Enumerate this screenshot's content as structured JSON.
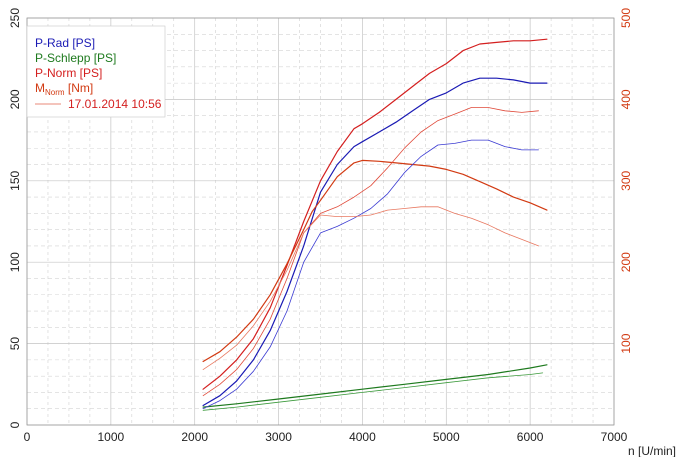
{
  "chart_data": {
    "type": "line",
    "title": "",
    "xlabel": "n [U/min]",
    "xlim": [
      0,
      7000
    ],
    "ylim_left": [
      0,
      250
    ],
    "ylim_right": [
      0,
      500
    ],
    "x_ticks": [
      0,
      1000,
      2000,
      3000,
      4000,
      5000,
      6000,
      7000
    ],
    "y_ticks_left": [
      0,
      50,
      100,
      150,
      200,
      250
    ],
    "y_ticks_right": [
      100,
      200,
      300,
      400,
      500
    ],
    "grid": true,
    "legend": {
      "position": "top-left",
      "entries": [
        {
          "label": "P-Rad [PS]",
          "color": "#1a1ab4"
        },
        {
          "label": "P-Schlepp [PS]",
          "color": "#1e7a1e"
        },
        {
          "label": "P-Norm [PS]",
          "color": "#d41f1f"
        },
        {
          "label_main": "M",
          "label_sub": "Norm",
          "label_unit": " [Nm]",
          "color": "#d23a12"
        }
      ],
      "comparison": {
        "label": "17.01.2014 10:56",
        "color": "#e88a7a"
      }
    },
    "series": [
      {
        "name": "P-Rad [PS]",
        "run": "main",
        "axis": "left",
        "color": "#1a1ab4",
        "width": 1.2,
        "x": [
          2100,
          2300,
          2500,
          2700,
          2900,
          3100,
          3300,
          3500,
          3700,
          3900,
          4000,
          4200,
          4400,
          4600,
          4800,
          5000,
          5200,
          5400,
          5600,
          5800,
          6000,
          6200
        ],
        "y": [
          12,
          18,
          27,
          40,
          58,
          82,
          110,
          143,
          160,
          171,
          174,
          180,
          186,
          193,
          200,
          204,
          210,
          213,
          213,
          212,
          210,
          210
        ]
      },
      {
        "name": "P-Norm [PS]",
        "run": "main",
        "axis": "left",
        "color": "#d41f1f",
        "width": 1.2,
        "x": [
          2100,
          2300,
          2500,
          2700,
          2900,
          3100,
          3300,
          3500,
          3700,
          3900,
          4000,
          4200,
          4400,
          4600,
          4800,
          5000,
          5200,
          5400,
          5600,
          5800,
          6000,
          6200
        ],
        "y": [
          22,
          30,
          40,
          53,
          72,
          98,
          125,
          150,
          168,
          182,
          185,
          192,
          200,
          208,
          216,
          222,
          230,
          234,
          235,
          236,
          236,
          237
        ]
      },
      {
        "name": "P-Schlepp [PS]",
        "run": "main",
        "axis": "left",
        "color": "#1e7a1e",
        "width": 1.2,
        "x": [
          2100,
          2500,
          3000,
          3500,
          4000,
          4500,
          5000,
          5500,
          6000,
          6200
        ],
        "y": [
          11,
          13,
          16,
          19,
          22,
          25,
          28,
          31,
          35,
          37
        ]
      },
      {
        "name": "M Norm [Nm]",
        "run": "main",
        "axis": "right",
        "color": "#d23a12",
        "width": 1.2,
        "x": [
          2100,
          2300,
          2500,
          2700,
          2900,
          3100,
          3300,
          3400,
          3500,
          3700,
          3900,
          4000,
          4200,
          4400,
          4600,
          4800,
          5000,
          5200,
          5400,
          5600,
          5800,
          6000,
          6200
        ],
        "y": [
          78,
          90,
          108,
          130,
          160,
          198,
          240,
          262,
          276,
          305,
          322,
          325,
          324,
          322,
          320,
          318,
          314,
          308,
          299,
          290,
          280,
          273,
          264
        ]
      },
      {
        "name": "P-Rad [PS]",
        "run": "17.01.2014 10:56",
        "axis": "left",
        "color": "#3a3ad2",
        "width": 0.8,
        "x": [
          2100,
          2300,
          2500,
          2700,
          2900,
          3100,
          3300,
          3500,
          3700,
          3900,
          4100,
          4300,
          4500,
          4700,
          4900,
          5100,
          5300,
          5500,
          5700,
          5900,
          6100
        ],
        "y": [
          10,
          15,
          22,
          33,
          48,
          70,
          100,
          118,
          122,
          127,
          133,
          142,
          155,
          165,
          172,
          173,
          175,
          175,
          171,
          169,
          169
        ]
      },
      {
        "name": "P-Norm [PS]",
        "run": "17.01.2014 10:56",
        "axis": "left",
        "color": "#e04a3a",
        "width": 0.8,
        "x": [
          2100,
          2300,
          2500,
          2700,
          2900,
          3100,
          3300,
          3500,
          3700,
          3900,
          4100,
          4300,
          4500,
          4700,
          4900,
          5100,
          5300,
          5500,
          5700,
          5900,
          6100
        ],
        "y": [
          18,
          25,
          34,
          47,
          65,
          90,
          118,
          130,
          134,
          140,
          147,
          158,
          170,
          180,
          187,
          191,
          195,
          195,
          193,
          192,
          193
        ]
      },
      {
        "name": "P-Schlepp [PS]",
        "run": "17.01.2014 10:56",
        "axis": "left",
        "color": "#3c9a3c",
        "width": 0.8,
        "x": [
          2100,
          2500,
          3000,
          3500,
          4000,
          4500,
          5000,
          5500,
          6000,
          6150
        ],
        "y": [
          9,
          11,
          14,
          17,
          20,
          23,
          26,
          29,
          31,
          32
        ]
      },
      {
        "name": "M Norm [Nm]",
        "run": "17.01.2014 10:56",
        "axis": "right",
        "color": "#e87860",
        "width": 0.8,
        "x": [
          2100,
          2300,
          2500,
          2700,
          2900,
          3100,
          3300,
          3500,
          3700,
          3900,
          4100,
          4300,
          4500,
          4700,
          4900,
          5100,
          5300,
          5500,
          5700,
          5900,
          6100
        ],
        "y": [
          68,
          82,
          98,
          122,
          152,
          190,
          236,
          258,
          256,
          256,
          258,
          264,
          266,
          268,
          268,
          260,
          254,
          246,
          236,
          228,
          220
        ]
      }
    ]
  }
}
